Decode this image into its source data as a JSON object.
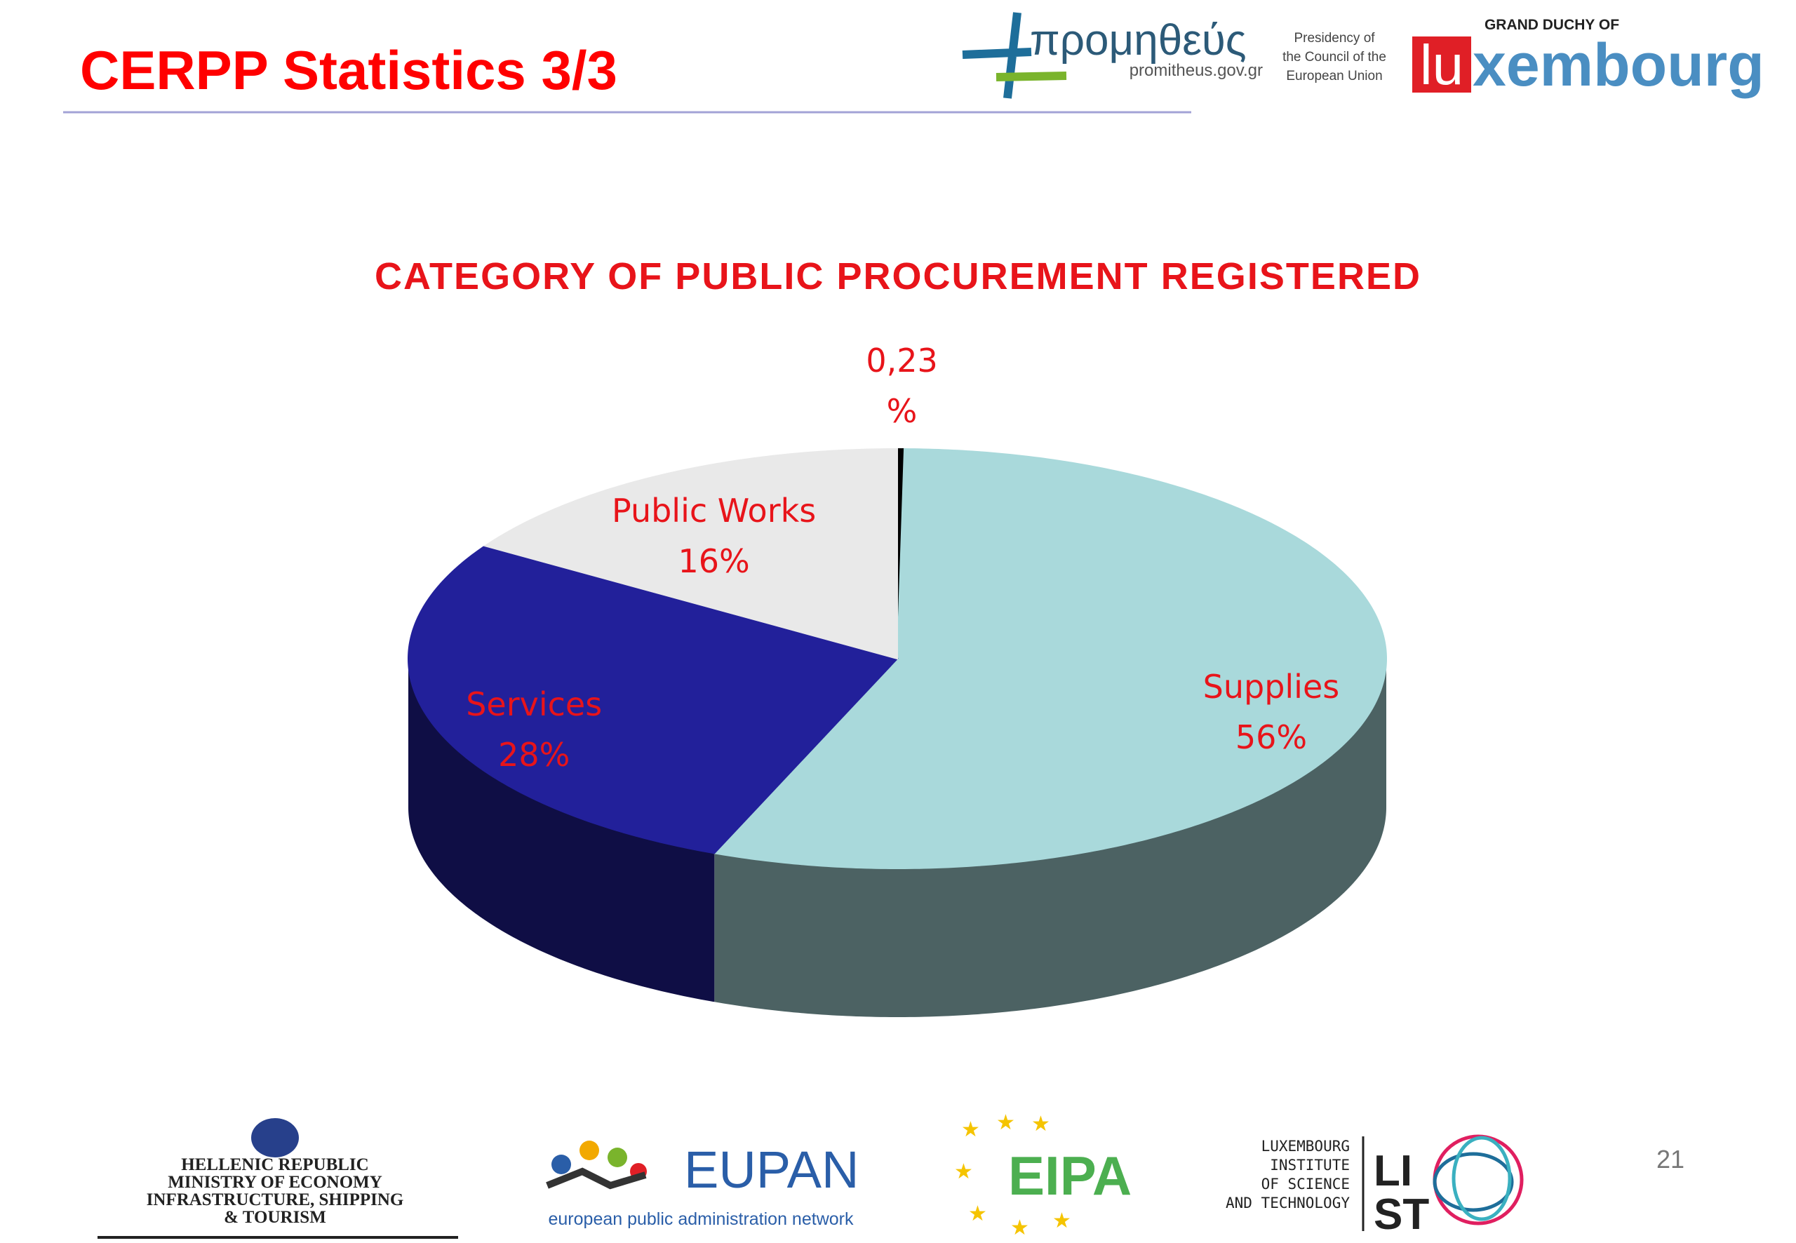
{
  "header": {
    "title": "CERPP Statistics 3/3",
    "logo_greek": "προμηθεύς",
    "logo_url": "promitheus.gov.gr",
    "presidency_lines": [
      "Presidency of",
      "the Council of the",
      "European Union"
    ],
    "duchy": "GRAND DUCHY OF",
    "lux_box": "lu",
    "lux_rest": "xembourg"
  },
  "chart_data": {
    "type": "pie3d",
    "title": "CATEGORY OF PUBLIC PROCUREMENT REGISTERED",
    "categories": [
      null,
      "Supplies",
      "Services",
      "Public Works"
    ],
    "values": [
      0.23,
      56,
      28,
      16
    ],
    "value_labels": [
      "0,23 %",
      "56%",
      "28%",
      "16%"
    ],
    "colors": [
      "#000000",
      "#a9d9db",
      "#22209a",
      "#e9e9e9"
    ]
  },
  "footer": {
    "ministry_lines": [
      "HELLENIC REPUBLIC",
      "MINISTRY OF ECONOMY",
      "INFRASTRUCTURE, SHIPPING",
      "& TOURISM"
    ],
    "eupan": "EUPAN",
    "eupan_tagline": "european public administration network",
    "eipa": "EIPA",
    "list_lines": [
      "LUXEMBOURG",
      "INSTITUTE",
      "OF SCIENCE",
      "AND TECHNOLOGY"
    ],
    "list_mark": [
      "LI",
      "ST"
    ],
    "page_number": "21"
  }
}
